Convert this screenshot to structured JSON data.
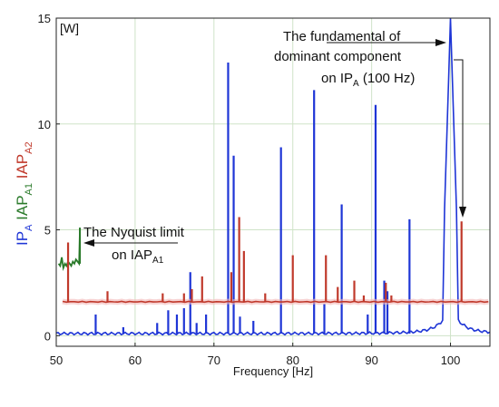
{
  "chart_data": {
    "type": "line",
    "xlabel": "Frequency [Hz]",
    "unit_label": "[W]",
    "xlim": [
      50,
      105
    ],
    "ylim": [
      -0.5,
      15
    ],
    "x_ticks": [
      50,
      60,
      70,
      80,
      90,
      100
    ],
    "y_ticks": [
      0,
      5,
      10,
      15
    ],
    "grid": true,
    "ylabel_parts": [
      {
        "name": "IP",
        "sub": "A",
        "color": "#1e35d6"
      },
      {
        "name": "IAP",
        "sub": "A1",
        "color": "#2a7a2a"
      },
      {
        "name": "IAP",
        "sub": "A2",
        "color": "#c0392b"
      }
    ],
    "annotations": {
      "nyquist_line1": "The Nyquist limit",
      "nyquist_line2_main": "on IAP",
      "nyquist_line2_sub": "A1",
      "fund_line1": "The fundamental of",
      "fund_line2": "dominant component",
      "fund_line3_main": "on IP",
      "fund_line3_sub": "A",
      "fund_line3_rest": " (100 Hz)"
    },
    "series": [
      {
        "name": "IP_A",
        "color": "#1e35d6",
        "baseline": 0.1,
        "peaks": [
          {
            "x": 55.0,
            "y": 1.0
          },
          {
            "x": 58.5,
            "y": 0.4
          },
          {
            "x": 62.8,
            "y": 0.6
          },
          {
            "x": 64.2,
            "y": 1.2
          },
          {
            "x": 65.3,
            "y": 1.0
          },
          {
            "x": 66.2,
            "y": 1.3
          },
          {
            "x": 67.0,
            "y": 3.0
          },
          {
            "x": 67.8,
            "y": 0.6
          },
          {
            "x": 69.0,
            "y": 1.0
          },
          {
            "x": 71.8,
            "y": 12.9
          },
          {
            "x": 72.5,
            "y": 8.5
          },
          {
            "x": 73.3,
            "y": 0.9
          },
          {
            "x": 75.0,
            "y": 0.7
          },
          {
            "x": 78.5,
            "y": 8.9
          },
          {
            "x": 82.7,
            "y": 11.6
          },
          {
            "x": 84.0,
            "y": 1.5
          },
          {
            "x": 86.2,
            "y": 6.2
          },
          {
            "x": 89.5,
            "y": 1.0
          },
          {
            "x": 90.5,
            "y": 10.9
          },
          {
            "x": 91.6,
            "y": 2.6
          },
          {
            "x": 92.0,
            "y": 2.1
          },
          {
            "x": 94.8,
            "y": 5.5
          }
        ]
      },
      {
        "name": "IAP_A1",
        "color": "#2a7a2a",
        "x": [
          50.3,
          50.5,
          50.7,
          50.9,
          51.1,
          51.3,
          51.5,
          51.7,
          51.9,
          52.1,
          52.3,
          52.5,
          52.7,
          52.9,
          53.0
        ],
        "y": [
          3.4,
          3.3,
          3.7,
          3.2,
          3.4,
          3.3,
          3.5,
          3.4,
          3.3,
          3.5,
          3.4,
          3.6,
          3.5,
          3.4,
          5.1
        ]
      },
      {
        "name": "IAP_A2",
        "color": "#c0392b",
        "baseline": 1.6,
        "peaks": [
          {
            "x": 51.5,
            "y": 4.4
          },
          {
            "x": 56.5,
            "y": 2.1
          },
          {
            "x": 63.5,
            "y": 2.0
          },
          {
            "x": 66.2,
            "y": 2.0
          },
          {
            "x": 67.2,
            "y": 2.2
          },
          {
            "x": 68.5,
            "y": 2.8
          },
          {
            "x": 72.2,
            "y": 3.0
          },
          {
            "x": 73.2,
            "y": 5.6
          },
          {
            "x": 73.8,
            "y": 4.0
          },
          {
            "x": 76.5,
            "y": 2.0
          },
          {
            "x": 80.0,
            "y": 3.8
          },
          {
            "x": 84.2,
            "y": 3.8
          },
          {
            "x": 85.7,
            "y": 2.3
          },
          {
            "x": 87.8,
            "y": 2.6
          },
          {
            "x": 89.0,
            "y": 1.9
          },
          {
            "x": 91.8,
            "y": 2.5
          },
          {
            "x": 92.5,
            "y": 1.9
          },
          {
            "x": 101.4,
            "y": 5.4
          }
        ]
      }
    ]
  }
}
